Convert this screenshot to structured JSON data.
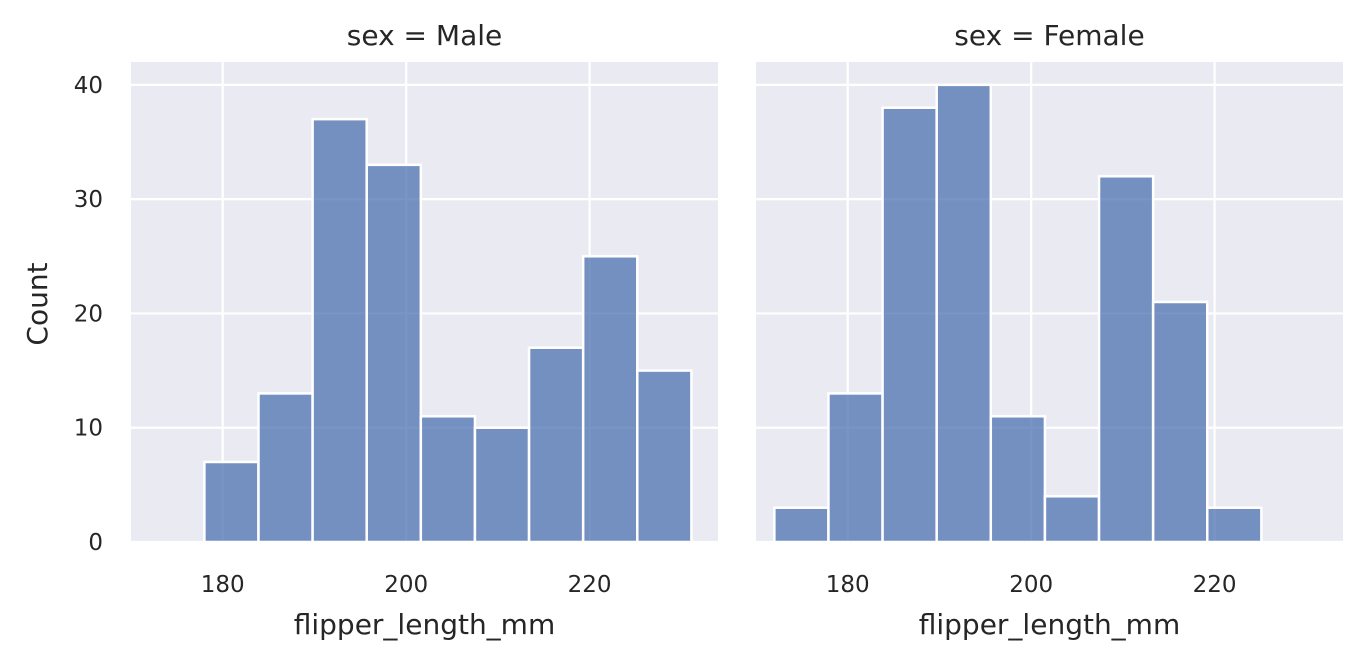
{
  "chart_data": {
    "type": "bar",
    "layout": "facet-grid",
    "shared_y": true,
    "grid": true,
    "ylabel": "Count",
    "xlabel": "flipper_length_mm",
    "xlim": [
      170,
      234
    ],
    "ylim": [
      0,
      42
    ],
    "x_ticks": [
      180,
      200,
      220
    ],
    "y_ticks": [
      0,
      10,
      20,
      30,
      40
    ],
    "bar_color": "#4C72B0",
    "panel_background": "#EAEAF2",
    "panels": [
      {
        "title": "sex = Male",
        "bins": [
          {
            "x0": 178.0,
            "x1": 183.9,
            "count": 7
          },
          {
            "x0": 183.9,
            "x1": 189.8,
            "count": 13
          },
          {
            "x0": 189.8,
            "x1": 195.7,
            "count": 37
          },
          {
            "x0": 195.7,
            "x1": 201.6,
            "count": 33
          },
          {
            "x0": 201.6,
            "x1": 207.5,
            "count": 11
          },
          {
            "x0": 207.5,
            "x1": 213.4,
            "count": 10
          },
          {
            "x0": 213.4,
            "x1": 219.3,
            "count": 17
          },
          {
            "x0": 219.3,
            "x1": 225.2,
            "count": 25
          },
          {
            "x0": 225.2,
            "x1": 231.1,
            "count": 15
          }
        ]
      },
      {
        "title": "sex = Female",
        "bins": [
          {
            "x0": 172.0,
            "x1": 177.9,
            "count": 3
          },
          {
            "x0": 177.9,
            "x1": 183.8,
            "count": 13
          },
          {
            "x0": 183.8,
            "x1": 189.7,
            "count": 38
          },
          {
            "x0": 189.7,
            "x1": 195.6,
            "count": 40
          },
          {
            "x0": 195.6,
            "x1": 201.5,
            "count": 11
          },
          {
            "x0": 201.5,
            "x1": 207.4,
            "count": 4
          },
          {
            "x0": 207.4,
            "x1": 213.3,
            "count": 32
          },
          {
            "x0": 213.3,
            "x1": 219.2,
            "count": 21
          },
          {
            "x0": 219.2,
            "x1": 225.1,
            "count": 3
          }
        ]
      }
    ]
  }
}
